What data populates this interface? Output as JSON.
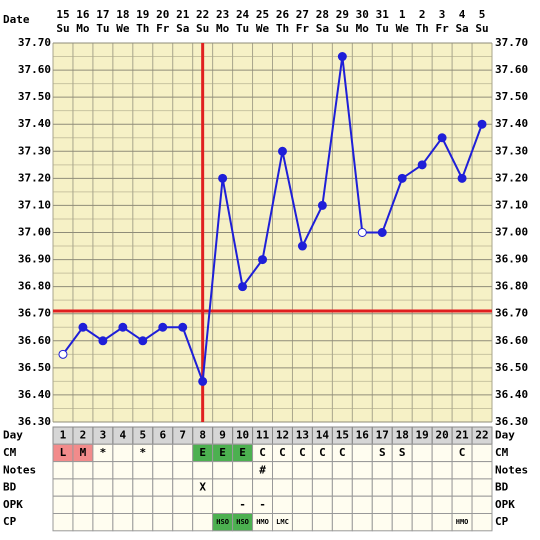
{
  "chart_data": {
    "type": "line",
    "date_label": "Date",
    "categories": [
      "15",
      "16",
      "17",
      "18",
      "19",
      "20",
      "21",
      "22",
      "23",
      "24",
      "25",
      "26",
      "27",
      "28",
      "29",
      "30",
      "31",
      "1",
      "2",
      "3",
      "4",
      "5"
    ],
    "weekdays": [
      "Su",
      "Mo",
      "Tu",
      "We",
      "Th",
      "Fr",
      "Sa",
      "Su",
      "Mo",
      "Tu",
      "We",
      "Th",
      "Fr",
      "Sa",
      "Su",
      "Mo",
      "Tu",
      "We",
      "Th",
      "Fr",
      "Sa",
      "Su"
    ],
    "values": [
      36.55,
      36.65,
      36.6,
      36.65,
      36.6,
      36.65,
      36.65,
      36.45,
      37.2,
      36.8,
      36.9,
      37.3,
      36.95,
      37.1,
      37.65,
      37.0,
      37.0,
      37.2,
      37.25,
      37.35,
      37.2,
      37.4
    ],
    "color": "#1f1fd8",
    "hollow_points": [
      1,
      16
    ],
    "coverline": 36.71,
    "ovulation_day": 8,
    "marker_line_color": "#e02020",
    "ylim": [
      36.3,
      37.7
    ],
    "yticks": [
      {
        "value": 37.7,
        "label": "37.70"
      },
      {
        "value": 37.6,
        "label": "37.60"
      },
      {
        "value": 37.5,
        "label": "37.50"
      },
      {
        "value": 37.4,
        "label": "37.40"
      },
      {
        "value": 37.3,
        "label": "37.30"
      },
      {
        "value": 37.2,
        "label": "37.20"
      },
      {
        "value": 37.1,
        "label": "37.10"
      },
      {
        "value": 37.0,
        "label": "37.00"
      },
      {
        "value": 36.9,
        "label": "36.90"
      },
      {
        "value": 36.8,
        "label": "36.80"
      },
      {
        "value": 36.7,
        "label": "36.70"
      },
      {
        "value": 36.6,
        "label": "36.60"
      },
      {
        "value": 36.5,
        "label": "36.50"
      },
      {
        "value": 36.4,
        "label": "36.40"
      },
      {
        "value": 36.3,
        "label": "36.30"
      }
    ],
    "yminorticks": [
      37.65,
      37.55,
      37.45,
      37.35,
      37.25,
      37.15,
      37.05,
      36.95,
      36.85,
      36.75,
      36.65,
      36.55,
      36.45,
      36.35
    ],
    "grid": true
  },
  "table": {
    "day_label": "Day",
    "days": [
      1,
      2,
      3,
      4,
      5,
      6,
      7,
      8,
      9,
      10,
      11,
      12,
      13,
      14,
      15,
      16,
      17,
      18,
      19,
      20,
      21,
      22
    ],
    "rows": [
      {
        "label": "CM",
        "cells": [
          "L",
          "M",
          "*",
          null,
          "*",
          null,
          null,
          "E",
          "E",
          "E",
          "C",
          "C",
          "C",
          "C",
          "C",
          null,
          "S",
          "S",
          null,
          null,
          "C",
          null
        ],
        "fills": [
          "#f28b8b",
          "#f28b8b",
          null,
          null,
          null,
          null,
          null,
          "#4cb050",
          "#4cb050",
          "#4cb050",
          null,
          null,
          null,
          null,
          null,
          null,
          null,
          null,
          null,
          null,
          null,
          null
        ]
      },
      {
        "label": "Notes",
        "cells": [
          null,
          null,
          null,
          null,
          null,
          null,
          null,
          null,
          null,
          null,
          "#",
          null,
          null,
          null,
          null,
          null,
          null,
          null,
          null,
          null,
          null,
          null
        ]
      },
      {
        "label": "BD",
        "cells": [
          null,
          null,
          null,
          null,
          null,
          null,
          null,
          "X",
          null,
          null,
          null,
          null,
          null,
          null,
          null,
          null,
          null,
          null,
          null,
          null,
          null,
          null
        ]
      },
      {
        "label": "OPK",
        "cells": [
          null,
          null,
          null,
          null,
          null,
          null,
          null,
          null,
          null,
          "-",
          "-",
          null,
          null,
          null,
          null,
          null,
          null,
          null,
          null,
          null,
          null,
          null
        ]
      },
      {
        "label": "CP",
        "cells": [
          null,
          null,
          null,
          null,
          null,
          null,
          null,
          null,
          "HSO",
          "HSO",
          "HMO",
          "LMC",
          null,
          null,
          null,
          null,
          null,
          null,
          null,
          null,
          "HMO",
          null
        ],
        "fills": [
          null,
          null,
          null,
          null,
          null,
          null,
          null,
          null,
          "#4cb050",
          "#4cb050",
          null,
          null,
          null,
          null,
          null,
          null,
          null,
          null,
          null,
          null,
          null,
          null
        ]
      }
    ]
  }
}
